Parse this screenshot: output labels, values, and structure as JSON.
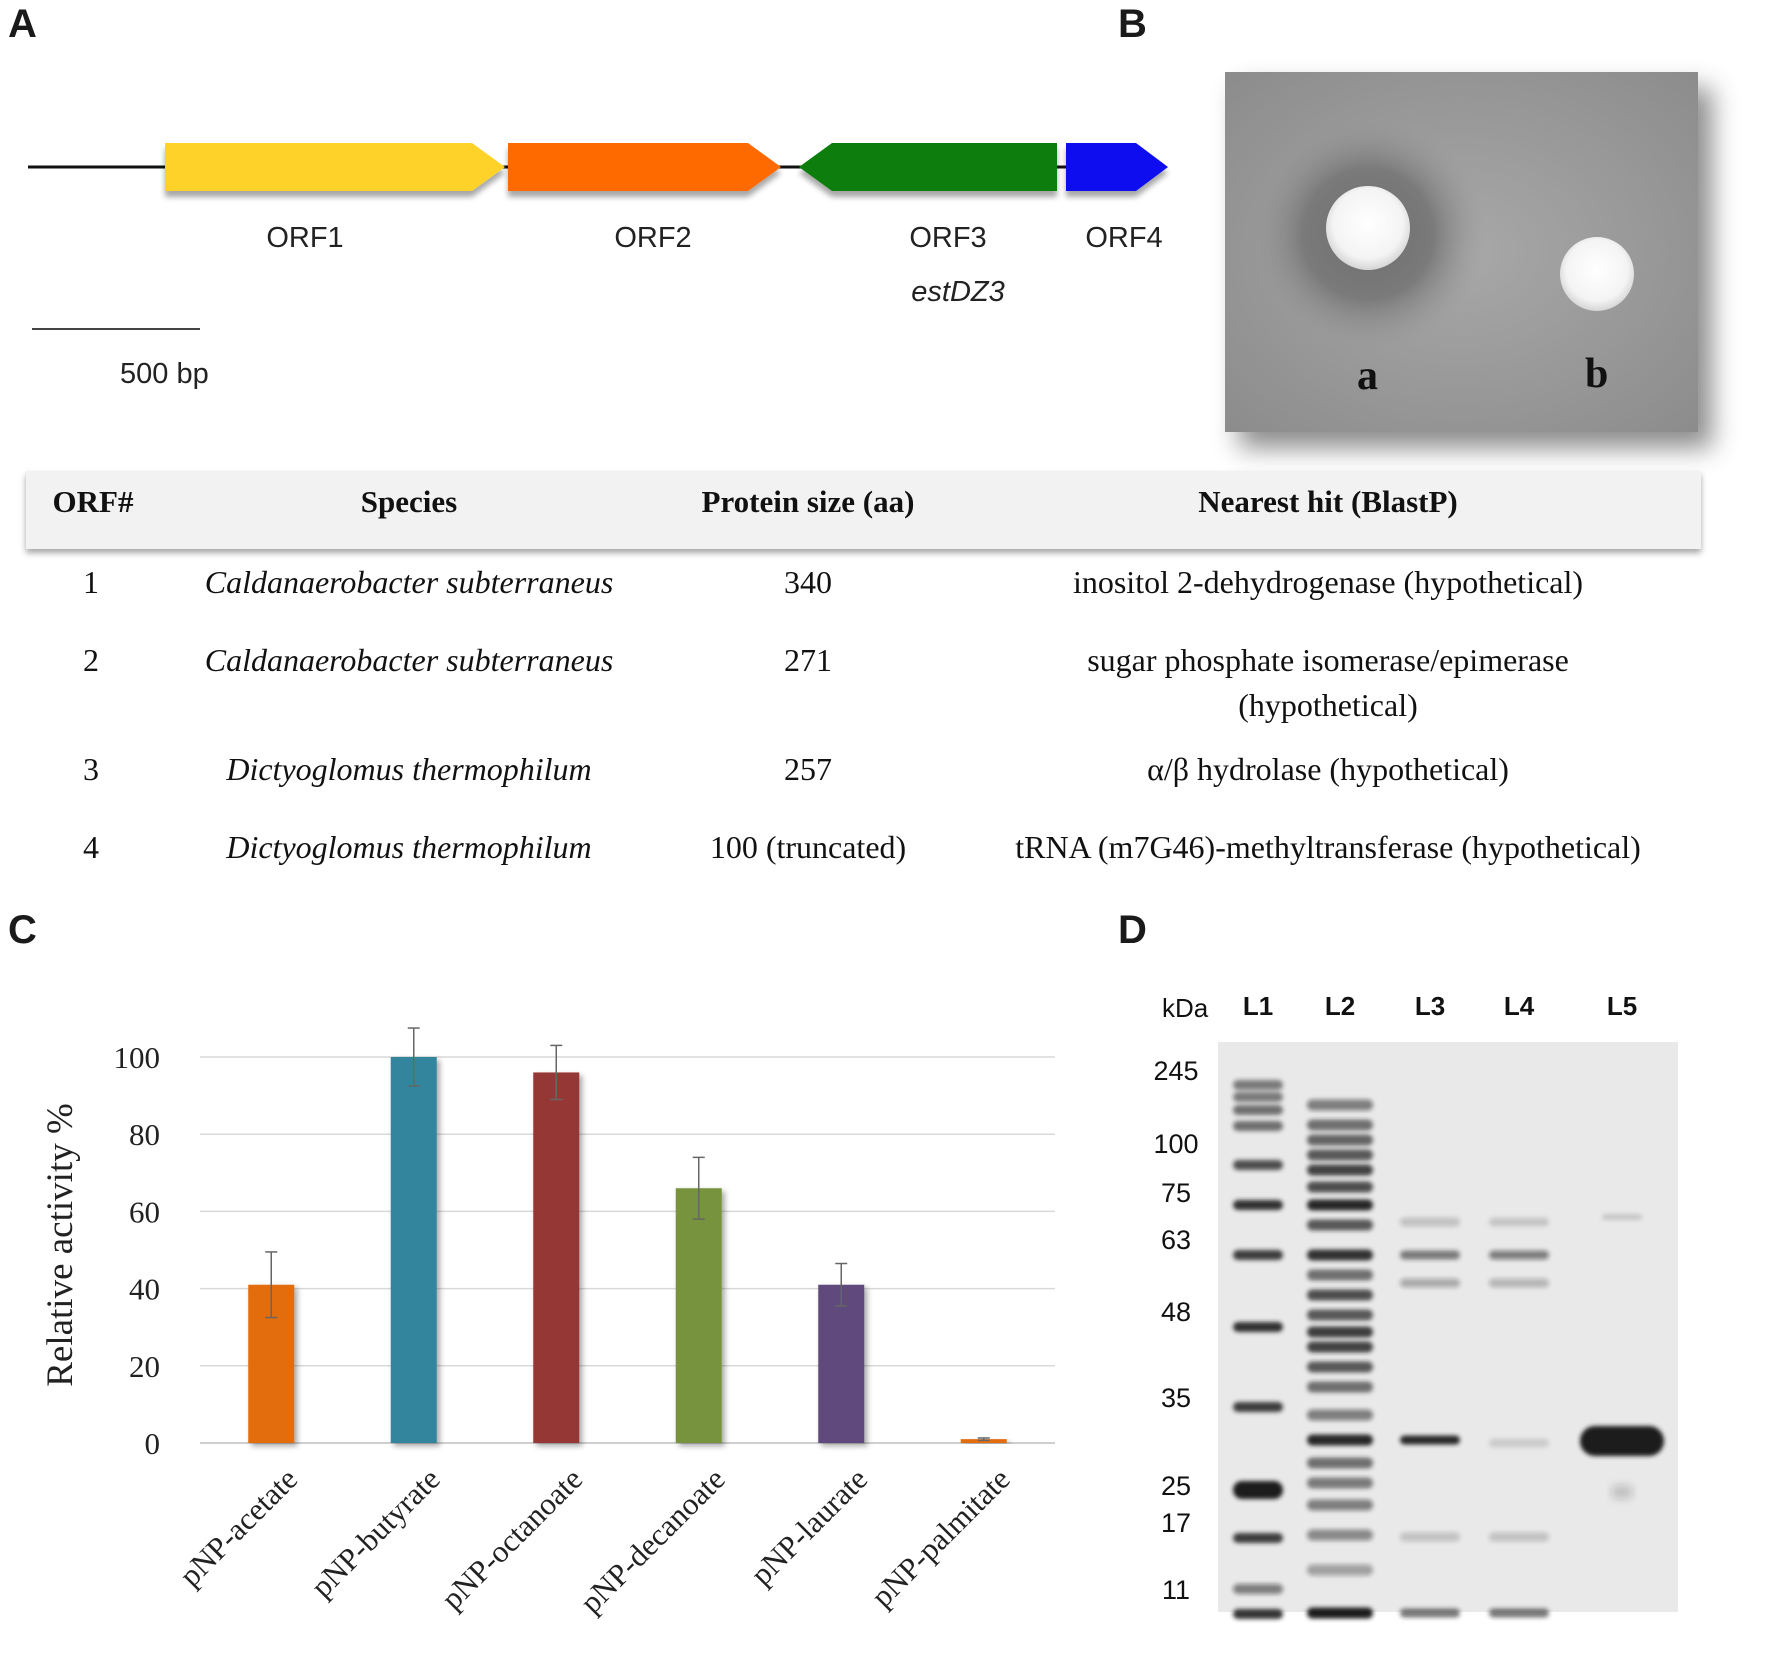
{
  "panels": {
    "a": "A",
    "b": "B",
    "c": "C",
    "d": "D"
  },
  "gene_map": {
    "orfs": [
      {
        "label": "ORF1",
        "color": "#FFD22A",
        "direction": "forward"
      },
      {
        "label": "ORF2",
        "color": "#FF6A00",
        "direction": "forward"
      },
      {
        "label": "ORF3",
        "color": "#0A7E0A",
        "direction": "reverse",
        "sublabel": "estDZ3"
      },
      {
        "label": "ORF4",
        "color": "#0A10F0",
        "direction": "forward"
      }
    ],
    "scale_label": "500 bp"
  },
  "plate": {
    "spot_a": "a",
    "spot_b": "b"
  },
  "table": {
    "headers": [
      "ORF#",
      "Species",
      "Protein size (aa)",
      "Nearest hit (BlastP)"
    ],
    "rows": [
      {
        "orf": "1",
        "species": "Caldanaerobacter subterraneus",
        "size": "340",
        "hit": "inositol 2-dehydrogenase (hypothetical)",
        "hit2": ""
      },
      {
        "orf": "2",
        "species": "Caldanaerobacter subterraneus",
        "size": "271",
        "hit": "sugar phosphate isomerase/epimerase",
        "hit2": "(hypothetical)"
      },
      {
        "orf": "3",
        "species": "Dictyoglomus thermophilum",
        "size": "257",
        "hit": "α/β hydrolase (hypothetical)",
        "hit2": ""
      },
      {
        "orf": "4",
        "species": "Dictyoglomus thermophilum",
        "size": "100 (truncated)",
        "hit": "tRNA (m7G46)-methyltransferase (hypothetical)",
        "hit2": ""
      }
    ]
  },
  "chart_data": {
    "type": "bar",
    "categories": [
      "pNP-acetate",
      "pNP-butyrate",
      "pNP-octanoate",
      "pNP-decanoate",
      "pNP-laurate",
      "pNP-palmitate"
    ],
    "values": [
      41,
      100,
      96,
      66,
      41,
      1
    ],
    "errors": [
      8.5,
      7.5,
      7,
      8,
      5.5,
      0.3
    ],
    "colors": [
      "#E36C0A",
      "#31859C",
      "#953735",
      "#77933C",
      "#604A7B",
      "#E36C0A"
    ],
    "xlabel": "",
    "ylabel": "Relative activity %",
    "ylim": [
      0,
      100
    ],
    "yticks": [
      0,
      20,
      40,
      60,
      80,
      100
    ],
    "grid": true
  },
  "gel": {
    "unit": "kDa",
    "lanes": [
      "L1",
      "L2",
      "L3",
      "L4",
      "L5"
    ],
    "markers": [
      "245",
      "100",
      "75",
      "63",
      "48",
      "35",
      "25",
      "17",
      "11"
    ]
  }
}
